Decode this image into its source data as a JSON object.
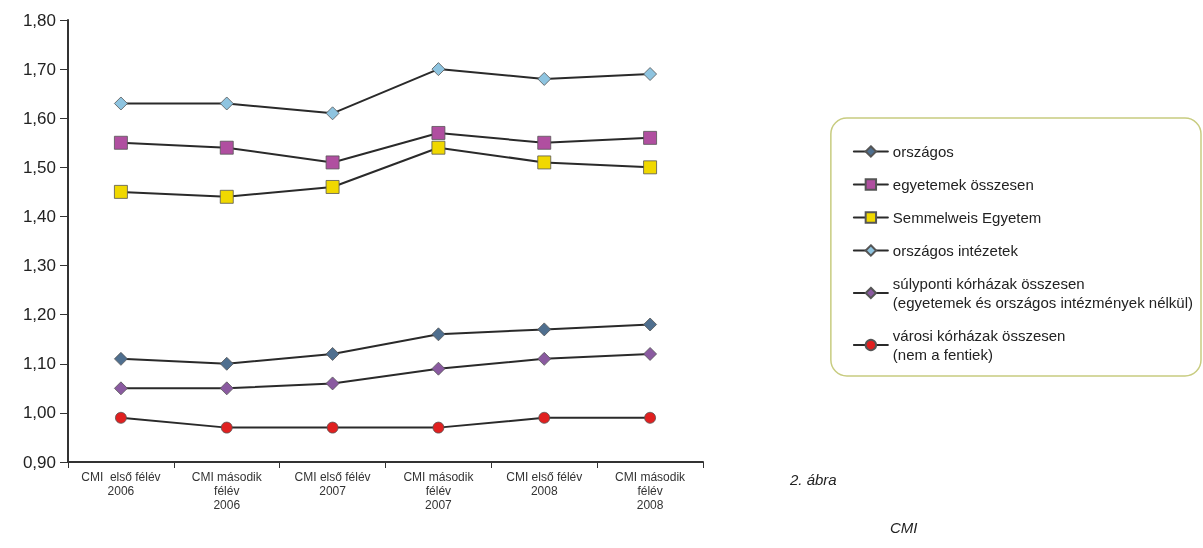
{
  "chart_data": {
    "type": "line",
    "categories": [
      "CMI  első félév\n2006",
      "CMI második\nfélév\n2006",
      "CMI első félév\n2007",
      "CMI második\nfélév\n2007",
      "CMI első félév\n2008",
      "CMI második\nfélév\n2008"
    ],
    "series": [
      {
        "name": "országos",
        "color": "#4f6f8f",
        "marker": "diamond",
        "values": [
          1.11,
          1.1,
          1.12,
          1.16,
          1.17,
          1.18
        ]
      },
      {
        "name": "egyetemek összesen",
        "color": "#b04fa0",
        "marker": "square",
        "values": [
          1.55,
          1.54,
          1.51,
          1.57,
          1.55,
          1.56
        ]
      },
      {
        "name": "Semmelweis Egyetem",
        "color": "#f0d800",
        "marker": "square",
        "values": [
          1.45,
          1.44,
          1.46,
          1.54,
          1.51,
          1.5
        ]
      },
      {
        "name": "országos intézetek",
        "color": "#8ec4e0",
        "marker": "diamond",
        "values": [
          1.63,
          1.63,
          1.61,
          1.7,
          1.68,
          1.69
        ]
      },
      {
        "name": "súlyponti kórházak összesen\n(egyetemek és országos intézmények nélkül)",
        "color": "#8a5aa0",
        "marker": "diamond",
        "values": [
          1.05,
          1.05,
          1.06,
          1.09,
          1.11,
          1.12
        ]
      },
      {
        "name": "városi kórházak összesen\n(nem a fentiek)",
        "color": "#e02020",
        "marker": "circle",
        "values": [
          0.99,
          0.97,
          0.97,
          0.97,
          0.99,
          0.99
        ]
      }
    ],
    "ylim": [
      0.9,
      1.8
    ],
    "yticks": [
      {
        "value": 0.9,
        "label": "0,90"
      },
      {
        "value": 1.0,
        "label": "1,00"
      },
      {
        "value": 1.1,
        "label": "1,10"
      },
      {
        "value": 1.2,
        "label": "1,20"
      },
      {
        "value": 1.3,
        "label": "1,30"
      },
      {
        "value": 1.4,
        "label": "1,40"
      },
      {
        "value": 1.5,
        "label": "1,50"
      },
      {
        "value": 1.6,
        "label": "1,60"
      },
      {
        "value": 1.7,
        "label": "1,70"
      },
      {
        "value": 1.8,
        "label": "1,80"
      }
    ],
    "grid": false,
    "legend": "right",
    "annotations": [
      "2. ábra",
      "CMI"
    ]
  }
}
